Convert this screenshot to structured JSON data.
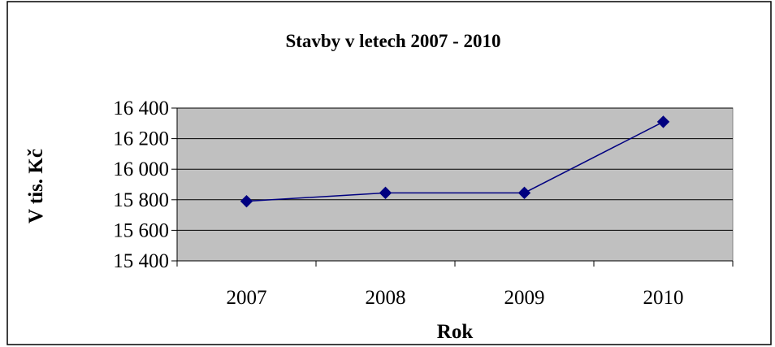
{
  "chart_data": {
    "type": "line",
    "title": "Stavby v letech 2007 - 2010",
    "xlabel": "Rok",
    "ylabel": "V tis. Kč",
    "categories": [
      "2007",
      "2008",
      "2009",
      "2010"
    ],
    "series": [
      {
        "values": [
          15790,
          15845,
          15845,
          16310
        ]
      }
    ],
    "ylim": [
      15400,
      16400
    ],
    "yticks": [
      15400,
      15600,
      15800,
      16000,
      16200,
      16400
    ],
    "ytick_labels": [
      "15 400",
      "15 600",
      "15 800",
      "16 000",
      "16 200",
      "16 400"
    ],
    "grid": true,
    "legend": "none",
    "colors": {
      "line": "#000080",
      "marker": "#000080",
      "plot_background": "#c0c0c0",
      "gridline": "#000000"
    },
    "marker": "diamond-icon"
  }
}
